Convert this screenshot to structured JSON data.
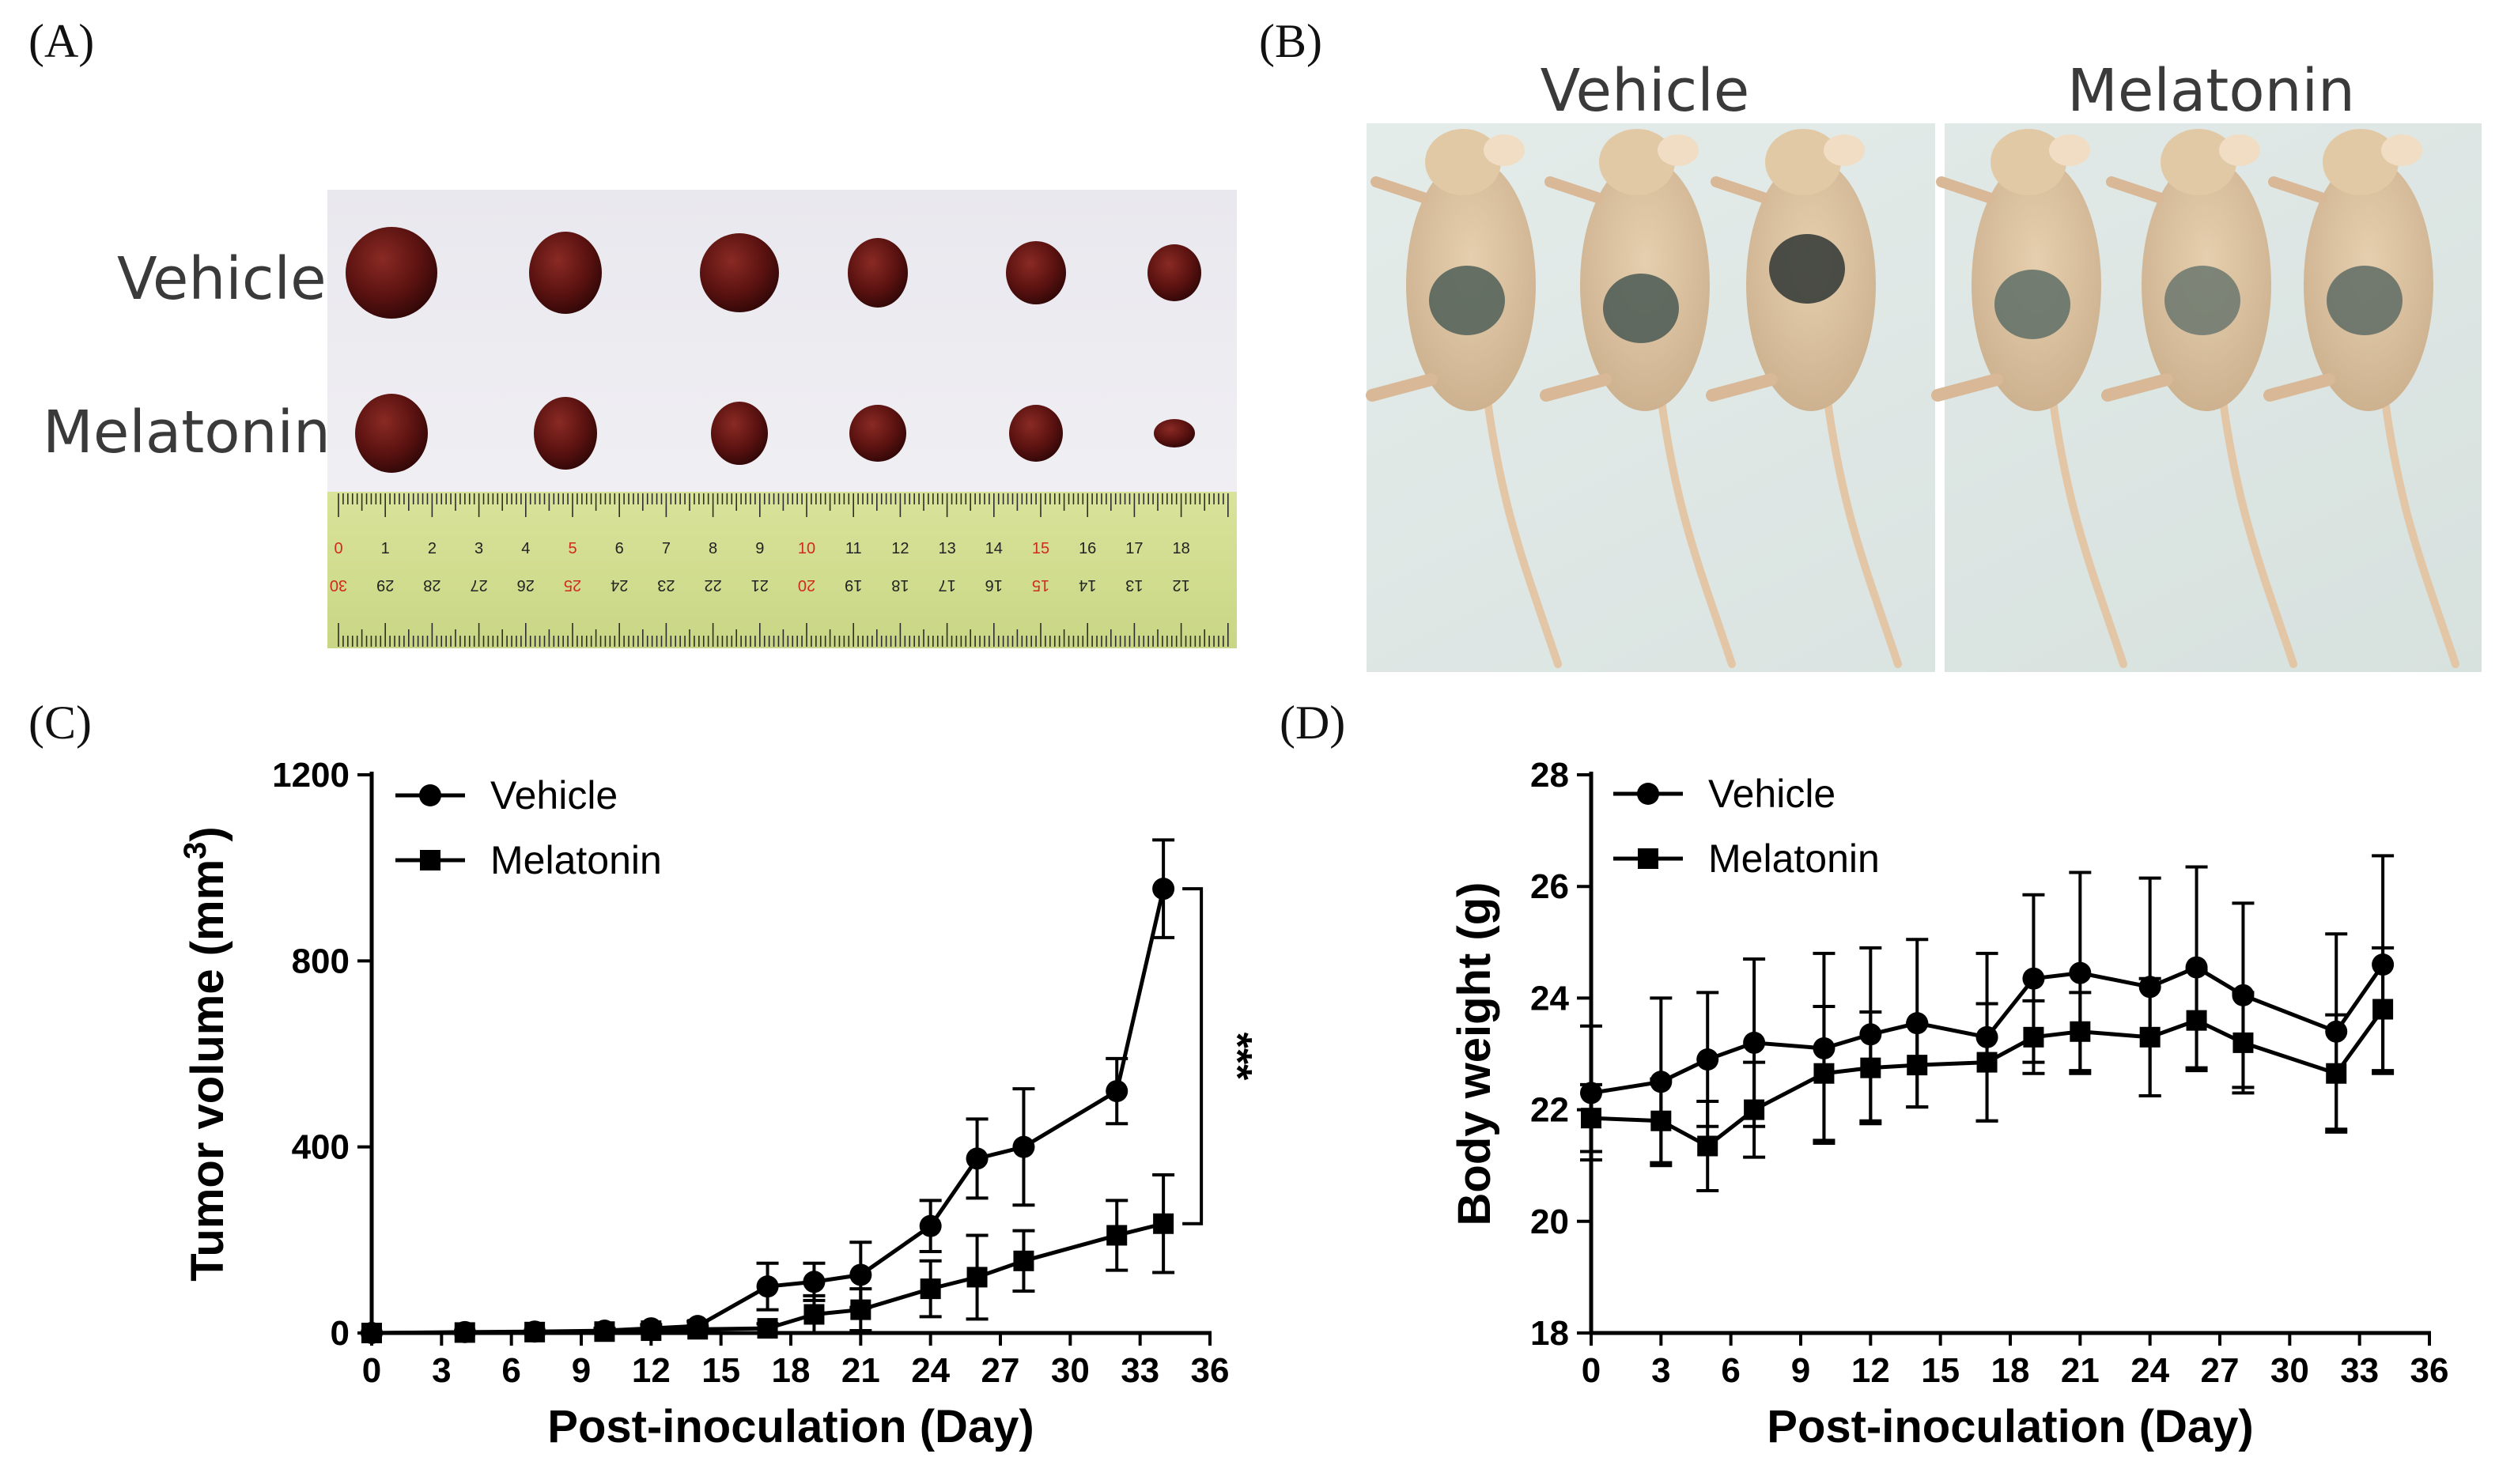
{
  "panels": {
    "a": {
      "label": "(A)",
      "row_labels": [
        "Vehicle",
        "Melatonin"
      ],
      "ruler_top": [
        "0",
        "1",
        "2",
        "3",
        "4",
        "5",
        "6",
        "7",
        "8",
        "9",
        "10",
        "11",
        "12",
        "13",
        "14",
        "15",
        "16",
        "17",
        "18"
      ],
      "ruler_bottom": [
        "30",
        "29",
        "28",
        "27",
        "26",
        "25",
        "24",
        "23",
        "22",
        "21",
        "20",
        "19",
        "18",
        "17",
        "16",
        "15",
        "14",
        "13",
        "12"
      ]
    },
    "b": {
      "label": "(B)",
      "group_labels": [
        "Vehicle",
        "Melatonin"
      ]
    },
    "c": {
      "label": "(C)"
    },
    "d": {
      "label": "(D)"
    }
  },
  "chart_data": [
    {
      "id": "c",
      "type": "line",
      "xlabel": "Post-inoculation (Day)",
      "ylabel_main": "Tumor volume (mm",
      "ylabel_sup": "3",
      "ylabel_close": ")",
      "xlim": [
        0,
        36
      ],
      "ylim": [
        0,
        1200
      ],
      "xticks": [
        0,
        3,
        6,
        9,
        12,
        15,
        18,
        21,
        24,
        27,
        30,
        33,
        36
      ],
      "yticks": [
        0,
        400,
        800,
        1200
      ],
      "annotation": "***",
      "series": [
        {
          "name": "Vehicle",
          "marker": "circle",
          "x": [
            0,
            4,
            7,
            10,
            12,
            14,
            17,
            19,
            21,
            24,
            26,
            28,
            32,
            34
          ],
          "y": [
            0,
            2,
            3,
            5,
            10,
            15,
            100,
            110,
            125,
            230,
            375,
            400,
            520,
            955
          ],
          "err": [
            0,
            0,
            0,
            5,
            8,
            10,
            50,
            40,
            70,
            55,
            85,
            125,
            70,
            105
          ]
        },
        {
          "name": "Melatonin",
          "marker": "square",
          "x": [
            0,
            4,
            7,
            10,
            12,
            14,
            17,
            19,
            21,
            24,
            26,
            28,
            32,
            34
          ],
          "y": [
            0,
            1,
            2,
            3,
            5,
            8,
            10,
            40,
            50,
            95,
            120,
            155,
            210,
            235
          ],
          "err": [
            0,
            0,
            0,
            3,
            5,
            5,
            10,
            40,
            45,
            60,
            90,
            65,
            75,
            105
          ]
        }
      ]
    },
    {
      "id": "d",
      "type": "line",
      "xlabel": "Post-inoculation (Day)",
      "ylabel": "Body weight (g)",
      "xlim": [
        0,
        36
      ],
      "ylim": [
        18,
        28
      ],
      "xticks": [
        0,
        3,
        6,
        9,
        12,
        15,
        18,
        21,
        24,
        27,
        30,
        33,
        36
      ],
      "yticks": [
        18,
        20,
        22,
        24,
        26,
        28
      ],
      "series": [
        {
          "name": "Vehicle",
          "marker": "circle",
          "x": [
            0,
            3,
            5,
            7,
            10,
            12,
            14,
            17,
            19,
            21,
            24,
            26,
            28,
            32,
            34
          ],
          "y": [
            22.3,
            22.5,
            22.9,
            23.2,
            23.1,
            23.35,
            23.55,
            23.3,
            24.35,
            24.45,
            24.2,
            24.55,
            24.05,
            23.4,
            24.6
          ],
          "err": [
            1.2,
            1.5,
            1.2,
            1.5,
            1.7,
            1.55,
            1.5,
            1.5,
            1.5,
            1.8,
            1.95,
            1.8,
            1.65,
            1.75,
            1.95
          ]
        },
        {
          "name": "Melatonin",
          "marker": "square",
          "x": [
            0,
            3,
            5,
            7,
            10,
            12,
            14,
            17,
            19,
            21,
            24,
            26,
            28,
            32,
            34
          ],
          "y": [
            21.85,
            21.8,
            21.35,
            22.0,
            22.65,
            22.75,
            22.8,
            22.85,
            23.3,
            23.4,
            23.3,
            23.6,
            23.2,
            22.65,
            23.8
          ],
          "err": [
            0.6,
            0.75,
            0.8,
            0.85,
            1.2,
            1.0,
            0.75,
            1.05,
            0.65,
            0.7,
            1.05,
            0.9,
            0.9,
            1.05,
            1.1
          ]
        }
      ]
    }
  ]
}
